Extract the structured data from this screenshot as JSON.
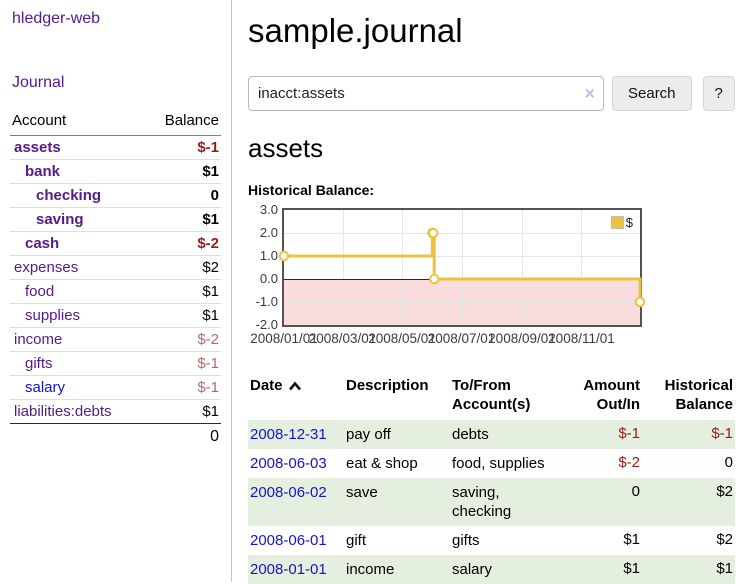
{
  "app": {
    "title": "hledger-web"
  },
  "sidebar": {
    "nav_journal": "Journal",
    "accounts": {
      "col_account": "Account",
      "col_balance": "Balance",
      "rows": [
        {
          "name": "assets",
          "balance": "$-1",
          "indent": 0,
          "bold": true,
          "negative": true
        },
        {
          "name": "bank",
          "balance": "$1",
          "indent": 1,
          "bold": true,
          "negative": false
        },
        {
          "name": "checking",
          "balance": "0",
          "indent": 2,
          "bold": true,
          "negative": false
        },
        {
          "name": "saving",
          "balance": "$1",
          "indent": 2,
          "bold": true,
          "negative": false
        },
        {
          "name": "cash",
          "balance": "$-2",
          "indent": 1,
          "bold": true,
          "negative": true
        },
        {
          "name": "expenses",
          "balance": "$2",
          "indent": 0,
          "bold": false,
          "negative": false
        },
        {
          "name": "food",
          "balance": "$1",
          "indent": 1,
          "bold": false,
          "negative": false
        },
        {
          "name": "supplies",
          "balance": "$1",
          "indent": 1,
          "bold": false,
          "negative": false
        },
        {
          "name": "income",
          "balance": "$-2",
          "indent": 0,
          "bold": false,
          "negative": true
        },
        {
          "name": "gifts",
          "balance": "$-1",
          "indent": 1,
          "bold": false,
          "negative": true
        },
        {
          "name": "salary",
          "balance": "$-1",
          "indent": 1,
          "bold": false,
          "negative": true,
          "name_color": "blue"
        },
        {
          "name": "liabilities:debts",
          "balance": "$1",
          "indent": 0,
          "bold": false,
          "negative": false
        }
      ],
      "total": "0"
    }
  },
  "main": {
    "title": "sample.journal",
    "search": {
      "value": "inacct:assets",
      "clear_icon": "×",
      "search_button": "Search",
      "help_button": "?"
    },
    "heading": "assets",
    "chart_label": "Historical Balance:",
    "register": {
      "headers": {
        "date": "Date",
        "description": "Description",
        "accounts": "To/From Account(s)",
        "amount": "Amount Out/In",
        "balance": "Historical Balance"
      },
      "rows": [
        {
          "date": "2008-12-31",
          "description": "pay off",
          "accounts": "debts",
          "amount": "$-1",
          "amount_negative": true,
          "balance": "$-1",
          "balance_negative": true
        },
        {
          "date": "2008-06-03",
          "description": "eat & shop",
          "accounts": "food, supplies",
          "amount": "$-2",
          "amount_negative": true,
          "balance": "0",
          "balance_negative": false
        },
        {
          "date": "2008-06-02",
          "description": "save",
          "accounts": "saving, checking",
          "amount": "0",
          "amount_negative": false,
          "balance": "$2",
          "balance_negative": false
        },
        {
          "date": "2008-06-01",
          "description": "gift",
          "accounts": "gifts",
          "amount": "$1",
          "amount_negative": false,
          "balance": "$2",
          "balance_negative": false
        },
        {
          "date": "2008-01-01",
          "description": "income",
          "accounts": "salary",
          "amount": "$1",
          "amount_negative": false,
          "balance": "$1",
          "balance_negative": false
        }
      ]
    }
  },
  "chart_data": {
    "type": "line",
    "step": true,
    "title": "Historical Balance:",
    "series": [
      {
        "name": "$",
        "points": [
          [
            "2008-01-01",
            1
          ],
          [
            "2008-06-01",
            2
          ],
          [
            "2008-06-02",
            2
          ],
          [
            "2008-06-03",
            0
          ],
          [
            "2008-12-31",
            -1
          ]
        ]
      }
    ],
    "x_range": [
      "2008-01-01",
      "2008-12-31"
    ],
    "x_tick_dates": [
      "2008-01-01",
      "2008-03-01",
      "2008-05-01",
      "2008-07-01",
      "2008-09-01",
      "2008-11-01"
    ],
    "x_tick_labels": [
      "2008/01/01",
      "2008/03/01",
      "2008/05/01",
      "2008/07/01",
      "2008/09/01",
      "2008/11/01"
    ],
    "y_ticks": [
      3.0,
      2.0,
      1.0,
      0.0,
      -1.0,
      -2.0
    ],
    "y_tick_labels": [
      "3.0",
      "2.0",
      "1.0",
      "0.0",
      "-1.0",
      "-2.0"
    ],
    "ylim": [
      -2,
      3
    ],
    "grid": true,
    "legend": {
      "label": "$",
      "position": "top-right"
    },
    "colors": {
      "line": "#edc240",
      "marker_fill": "#ffffff",
      "negative_region": "#f9dcdc",
      "zero_line": "#8b0000",
      "grid": "#e5e5e5",
      "border": "#545454"
    }
  }
}
